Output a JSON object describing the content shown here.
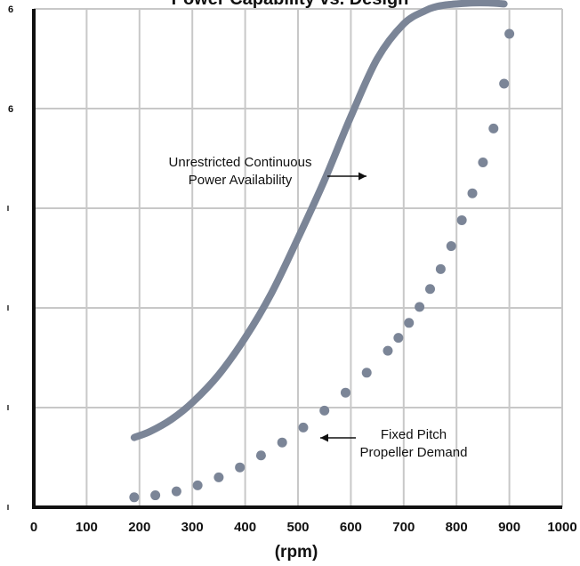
{
  "chart_data": {
    "type": "line",
    "title": "Power Capability vs. Design",
    "xlabel": "(rpm)",
    "ylabel": "",
    "xlim": [
      0,
      1000
    ],
    "ylim": [
      0,
      5
    ],
    "grid": true,
    "x_ticks": [
      "0",
      "100",
      "200",
      "300",
      "400",
      "500",
      "600",
      "700",
      "800",
      "900",
      "1000"
    ],
    "y_tick_labels": [
      "",
      "",
      "",
      "",
      "6",
      "6"
    ],
    "colors": {
      "series": "#7b8597",
      "axis": "#111111",
      "grid": "#c8c8c8"
    },
    "series": [
      {
        "style": "solid",
        "x": [
          190,
          220,
          260,
          300,
          350,
          400,
          450,
          500,
          550,
          600,
          650,
          700,
          740,
          760,
          780,
          800,
          830,
          860,
          890
        ],
        "y": [
          0.7,
          0.76,
          0.88,
          1.05,
          1.33,
          1.7,
          2.15,
          2.7,
          3.28,
          3.92,
          4.5,
          4.85,
          4.98,
          5.02,
          5.04,
          5.05,
          5.06,
          5.06,
          5.05
        ]
      },
      {
        "style": "dotted",
        "x": [
          190,
          230,
          270,
          310,
          350,
          390,
          430,
          470,
          510,
          550,
          590,
          630,
          670,
          690,
          710,
          730,
          750,
          770,
          790,
          810,
          830,
          850,
          870,
          890,
          900
        ],
        "y": [
          0.1,
          0.12,
          0.16,
          0.22,
          0.3,
          0.4,
          0.52,
          0.65,
          0.8,
          0.97,
          1.15,
          1.35,
          1.57,
          1.7,
          1.85,
          2.01,
          2.19,
          2.39,
          2.62,
          2.88,
          3.15,
          3.46,
          3.8,
          4.25,
          4.75
        ]
      }
    ],
    "annotations": [
      {
        "lines": [
          "Unrestricted Continuous",
          "Power Availability"
        ],
        "points_to_x": 670
      },
      {
        "lines": [
          "Fixed Pitch",
          "Propeller Demand"
        ],
        "points_to_x": 520
      }
    ]
  }
}
